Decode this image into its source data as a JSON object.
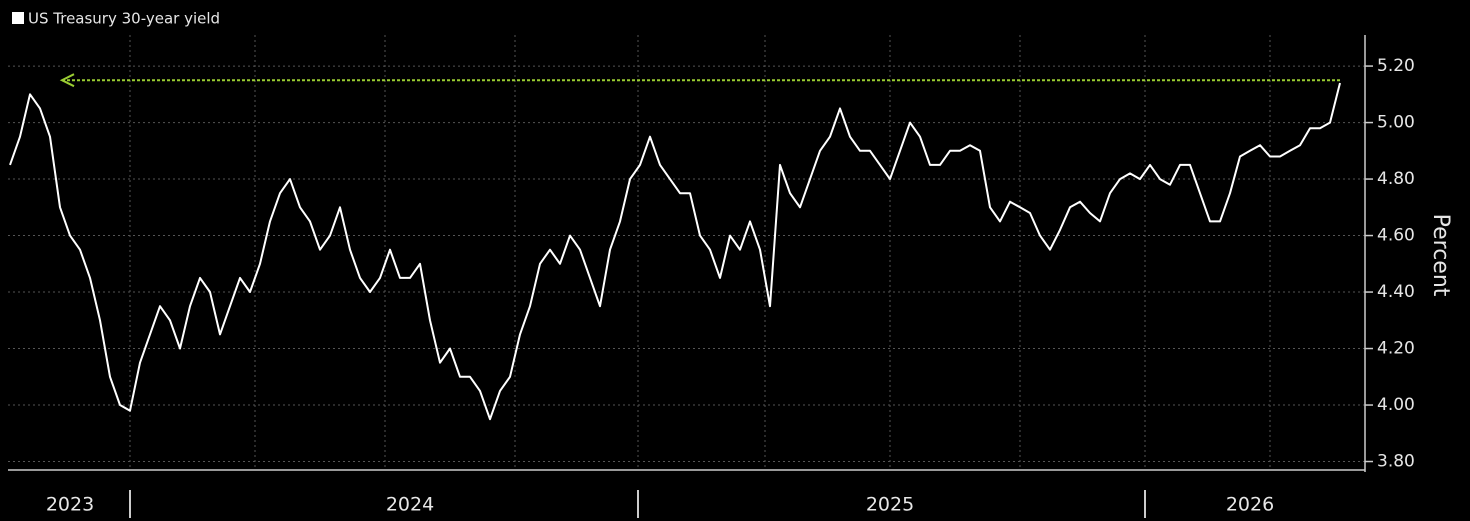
{
  "chart_data": {
    "type": "line",
    "legend_label": "US Treasury 30-year yield",
    "ylabel": "Percent",
    "categories": [
      null,
      null,
      null,
      null,
      null,
      null,
      "2023",
      null,
      null,
      null,
      null,
      null,
      null,
      null,
      null,
      null,
      null,
      null,
      null,
      null,
      null,
      null,
      null,
      null,
      null,
      null,
      null,
      null,
      null,
      null,
      null,
      null,
      null,
      null,
      null,
      null,
      null,
      null,
      null,
      null,
      "2024",
      null,
      null,
      null,
      null,
      null,
      null,
      null,
      null,
      null,
      null,
      null,
      null,
      null,
      null,
      null,
      null,
      null,
      null,
      null,
      null,
      null,
      null,
      null,
      null,
      null,
      null,
      null,
      null,
      null,
      null,
      null,
      null,
      null,
      null,
      null,
      null,
      null,
      null,
      null,
      null,
      null,
      null,
      null,
      null,
      null,
      null,
      null,
      "2025",
      null,
      null,
      null,
      null,
      null,
      null,
      null,
      null,
      null,
      null,
      null,
      null,
      null,
      null,
      null,
      null,
      null,
      null,
      null,
      null,
      null,
      null,
      null,
      null,
      null,
      null,
      null,
      null,
      null,
      null,
      null,
      null,
      null,
      null,
      null,
      "2026",
      null,
      null,
      null,
      null,
      null,
      null,
      null,
      null,
      null
    ],
    "series": [
      {
        "name": "US Treasury 30-year yield",
        "color": "#ffffff",
        "values": [
          4.85,
          4.95,
          5.1,
          5.05,
          4.95,
          4.7,
          4.6,
          4.55,
          4.45,
          4.3,
          4.1,
          4.0,
          3.98,
          4.15,
          4.25,
          4.35,
          4.3,
          4.2,
          4.35,
          4.45,
          4.4,
          4.25,
          4.35,
          4.45,
          4.4,
          4.5,
          4.65,
          4.75,
          4.8,
          4.7,
          4.65,
          4.55,
          4.6,
          4.7,
          4.55,
          4.45,
          4.4,
          4.45,
          4.55,
          4.45,
          4.45,
          4.5,
          4.3,
          4.15,
          4.2,
          4.1,
          4.1,
          4.05,
          3.95,
          4.05,
          4.1,
          4.25,
          4.35,
          4.5,
          4.55,
          4.5,
          4.6,
          4.55,
          4.45,
          4.35,
          4.55,
          4.65,
          4.8,
          4.85,
          4.95,
          4.85,
          4.8,
          4.75,
          4.75,
          4.6,
          4.55,
          4.45,
          4.6,
          4.55,
          4.65,
          4.55,
          4.35,
          4.85,
          4.75,
          4.7,
          4.8,
          4.9,
          4.95,
          5.05,
          4.95,
          4.9,
          4.9,
          4.85,
          4.8,
          4.9,
          5.0,
          4.95,
          4.85,
          4.85,
          4.9,
          4.9,
          4.92,
          4.9,
          4.7,
          4.65,
          4.72,
          4.7,
          4.68,
          4.6,
          4.55,
          4.62,
          4.7,
          4.72,
          4.68,
          4.65,
          4.75,
          4.8,
          4.82,
          4.8,
          4.85,
          4.8,
          4.78,
          4.85,
          4.85,
          4.75,
          4.65,
          4.65,
          4.75,
          4.88,
          4.9,
          4.92,
          4.88,
          4.88,
          4.9,
          4.92,
          4.98,
          4.98,
          5.0,
          5.14
        ]
      }
    ],
    "hline": 5.15,
    "hline_color": "#9acd32",
    "ylim": [
      3.77,
      5.31
    ],
    "yticks": [
      {
        "value": 3.8,
        "label": "3.80"
      },
      {
        "value": 4.0,
        "label": "4.00"
      },
      {
        "value": 4.2,
        "label": "4.20"
      },
      {
        "value": 4.4,
        "label": "4.40"
      },
      {
        "value": 4.6,
        "label": "4.60"
      },
      {
        "value": 4.8,
        "label": "4.80"
      },
      {
        "value": 5.0,
        "label": "5.00"
      },
      {
        "value": 5.2,
        "label": "5.20"
      }
    ],
    "grid": true
  }
}
